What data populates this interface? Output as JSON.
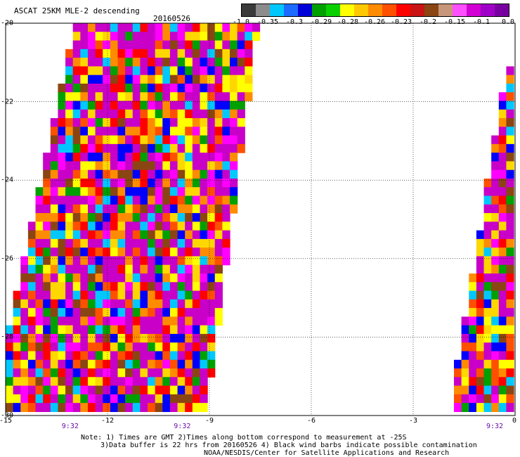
{
  "title": "ASCAT 25KM MLE-2 descending",
  "date": "20160526",
  "colorbar": {
    "colors": [
      "#3a3a3a",
      "#8c8c8c",
      "#00c8ff",
      "#1e6cff",
      "#0000d8",
      "#00a000",
      "#0ad000",
      "#ffff00",
      "#ffc800",
      "#ff8c00",
      "#ff5000",
      "#ff0000",
      "#c81414",
      "#8b4513",
      "#c89678",
      "#ff50ff",
      "#d200d2",
      "#a000c8",
      "#7800a0"
    ],
    "ticks": [
      "-1.0",
      "-0.35",
      "-0.3",
      "-0.29",
      "-0.28",
      "-0.26",
      "-0.23",
      "-0.2",
      "-0.15",
      "-0.1",
      "0.0"
    ]
  },
  "map": {
    "lon_range": [
      -15,
      0
    ],
    "lat_range": [
      -30,
      -20
    ],
    "y_labels": [
      "-20",
      "-22",
      "-24",
      "-26",
      "-28",
      "-30"
    ],
    "x_labels": [
      "-15",
      "-12",
      "-9",
      "-6",
      "-3",
      "0"
    ],
    "time_labels": [
      {
        "text": "9:32",
        "lon": -13.1
      },
      {
        "text": "9:32",
        "lon": -9.8
      },
      {
        "text": "9:32",
        "lon": -0.6
      }
    ],
    "swaths": [
      {
        "name": "west-swath",
        "polygon": [
          [
            -12.95,
            -20.0
          ],
          [
            -7.55,
            -20.0
          ],
          [
            -9.1,
            -30.0
          ],
          [
            -15.0,
            -30.0
          ],
          [
            -15.0,
            -28.1
          ]
        ]
      },
      {
        "name": "east-swath",
        "polygon": [
          [
            0.0,
            -21.1
          ],
          [
            -0.25,
            -21.1
          ],
          [
            -1.95,
            -30.0
          ],
          [
            0.0,
            -30.0
          ]
        ]
      }
    ],
    "cell_colors": [
      "#c800c8",
      "#c800c8",
      "#c800c8",
      "#c800c8",
      "#ff0000",
      "#ffd700",
      "#ff8c00",
      "#00a000",
      "#0000ff",
      "#00c8ff",
      "#8b4513",
      "#ff00ff",
      "#ffff00",
      "#ff5000"
    ]
  },
  "notes": [
    "Note: 1) Times are GMT 2)Times along bottom correspond to measurement at -25S",
    "3)Data buffer is 22 hrs from 20160526 4) Black wind barbs indicate possible contamination",
    "NOAA/NESDIS/Center for Satellite Applications and Research"
  ]
}
